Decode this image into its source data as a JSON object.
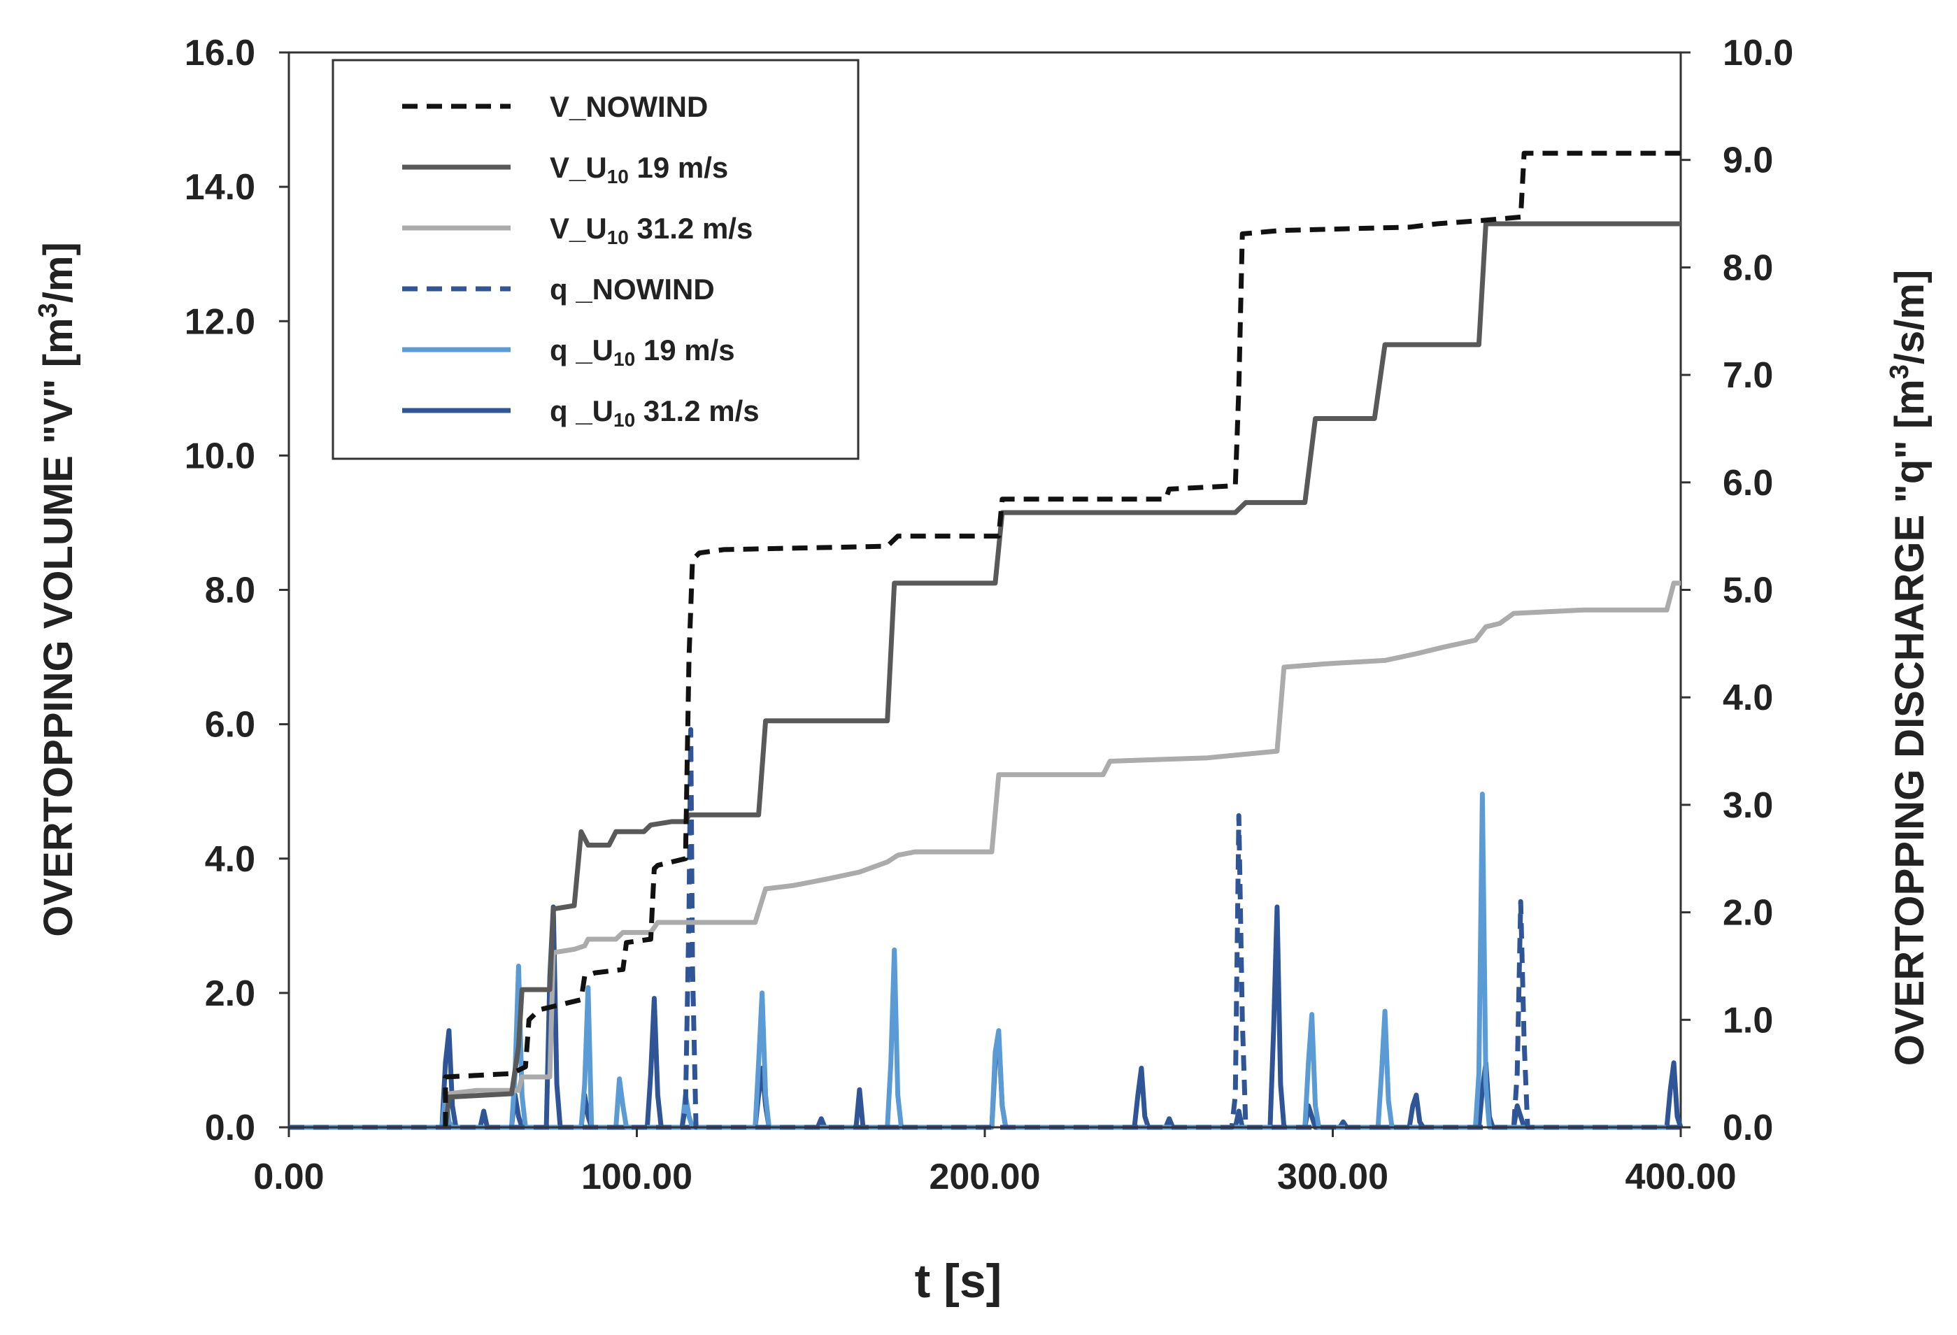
{
  "chart_data": {
    "type": "line",
    "x": {
      "label": "t [s]",
      "range": [
        0,
        400
      ],
      "ticks": [
        0,
        100,
        200,
        300,
        400
      ],
      "tick_labels": [
        "0.00",
        "100.00",
        "200.00",
        "300.00",
        "400.00"
      ]
    },
    "y_left": {
      "label_pre": "OVERTOPPING VOLUME \"V\" [m",
      "label_sup": "3",
      "label_post": "/m]",
      "range": [
        0,
        16
      ],
      "ticks": [
        0,
        2,
        4,
        6,
        8,
        10,
        12,
        14,
        16
      ],
      "tick_labels": [
        "0.0",
        "2.0",
        "4.0",
        "6.0",
        "8.0",
        "10.0",
        "12.0",
        "14.0",
        "16.0"
      ]
    },
    "y_right": {
      "label_pre": "OVERTOPPING DISCHARGE \"q\" [m",
      "label_sup": "3",
      "label_post": "/s/m]",
      "range": [
        0,
        10
      ],
      "ticks": [
        0,
        1,
        2,
        3,
        4,
        5,
        6,
        7,
        8,
        9,
        10
      ],
      "tick_labels": [
        "0.0",
        "1.0",
        "2.0",
        "3.0",
        "4.0",
        "5.0",
        "6.0",
        "7.0",
        "8.0",
        "9.0",
        "10.0"
      ]
    },
    "legend_position": "top-left",
    "series": [
      {
        "name": "V_NOWIND",
        "legend_pre": "V_NOWIND",
        "legend_sub": "",
        "legend_post": "",
        "axis": "left",
        "color": "#111111",
        "dash": "dashed",
        "points": [
          [
            45,
            0
          ],
          [
            45,
            0.75
          ],
          [
            64,
            0.8
          ],
          [
            68,
            0.9
          ],
          [
            69,
            1.6
          ],
          [
            72,
            1.75
          ],
          [
            76,
            1.8
          ],
          [
            84,
            1.9
          ],
          [
            85,
            2.25
          ],
          [
            88,
            2.3
          ],
          [
            96,
            2.35
          ],
          [
            97,
            2.75
          ],
          [
            104,
            2.8
          ],
          [
            105,
            3.85
          ],
          [
            106,
            3.9
          ],
          [
            114,
            4.0
          ],
          [
            115,
            7.0
          ],
          [
            116,
            8.45
          ],
          [
            118,
            8.55
          ],
          [
            125,
            8.6
          ],
          [
            172,
            8.65
          ],
          [
            175,
            8.8
          ],
          [
            190,
            8.8
          ],
          [
            204,
            8.8
          ],
          [
            205,
            9.35
          ],
          [
            230,
            9.35
          ],
          [
            252,
            9.35
          ],
          [
            253,
            9.5
          ],
          [
            272,
            9.55
          ],
          [
            273,
            11.0
          ],
          [
            274,
            13.3
          ],
          [
            285,
            13.35
          ],
          [
            322,
            13.4
          ],
          [
            330,
            13.45
          ],
          [
            343,
            13.5
          ],
          [
            354,
            13.55
          ],
          [
            355,
            14.5
          ],
          [
            400,
            14.5
          ]
        ]
      },
      {
        "name": "V_U10 19 m/s",
        "legend_pre": "V_U",
        "legend_sub": "10",
        "legend_post": " 19 m/s",
        "axis": "left",
        "color": "#595959",
        "dash": "solid",
        "points": [
          [
            45,
            0
          ],
          [
            46,
            0.45
          ],
          [
            64,
            0.5
          ],
          [
            66,
            1.2
          ],
          [
            67,
            2.05
          ],
          [
            75,
            2.05
          ],
          [
            76,
            3.25
          ],
          [
            82,
            3.3
          ],
          [
            84,
            4.4
          ],
          [
            86,
            4.2
          ],
          [
            92,
            4.2
          ],
          [
            94,
            4.4
          ],
          [
            102,
            4.4
          ],
          [
            104,
            4.5
          ],
          [
            110,
            4.55
          ],
          [
            114,
            4.55
          ],
          [
            115,
            4.65
          ],
          [
            135,
            4.65
          ],
          [
            137,
            6.05
          ],
          [
            172,
            6.05
          ],
          [
            174,
            8.1
          ],
          [
            203,
            8.1
          ],
          [
            205,
            9.15
          ],
          [
            272,
            9.15
          ],
          [
            275,
            9.3
          ],
          [
            292,
            9.3
          ],
          [
            295,
            10.55
          ],
          [
            312,
            10.55
          ],
          [
            315,
            11.65
          ],
          [
            342,
            11.65
          ],
          [
            344,
            13.45
          ],
          [
            400,
            13.45
          ]
        ]
      },
      {
        "name": "V_U10 31.2 m/s",
        "legend_pre": "V_U",
        "legend_sub": "10",
        "legend_post": " 31.2 m/s",
        "axis": "left",
        "color": "#ababab",
        "dash": "solid",
        "points": [
          [
            45,
            0
          ],
          [
            46,
            0.5
          ],
          [
            54,
            0.55
          ],
          [
            66,
            0.55
          ],
          [
            67,
            0.75
          ],
          [
            75,
            0.75
          ],
          [
            76,
            2.6
          ],
          [
            82,
            2.65
          ],
          [
            85,
            2.7
          ],
          [
            86,
            2.8
          ],
          [
            94,
            2.8
          ],
          [
            96,
            2.9
          ],
          [
            104,
            2.9
          ],
          [
            106,
            3.05
          ],
          [
            134,
            3.05
          ],
          [
            137,
            3.55
          ],
          [
            145,
            3.6
          ],
          [
            155,
            3.7
          ],
          [
            164,
            3.8
          ],
          [
            172,
            3.95
          ],
          [
            175,
            4.05
          ],
          [
            180,
            4.1
          ],
          [
            202,
            4.1
          ],
          [
            204,
            5.25
          ],
          [
            234,
            5.25
          ],
          [
            236,
            5.45
          ],
          [
            264,
            5.5
          ],
          [
            274,
            5.55
          ],
          [
            284,
            5.6
          ],
          [
            286,
            6.85
          ],
          [
            298,
            6.9
          ],
          [
            315,
            6.95
          ],
          [
            324,
            7.05
          ],
          [
            332,
            7.15
          ],
          [
            341,
            7.25
          ],
          [
            344,
            7.45
          ],
          [
            348,
            7.5
          ],
          [
            352,
            7.65
          ],
          [
            372,
            7.7
          ],
          [
            396,
            7.7
          ],
          [
            398,
            8.1
          ],
          [
            400,
            8.1
          ]
        ]
      },
      {
        "name": "q_NOWIND",
        "legend_pre": "q _NOWIND",
        "legend_sub": "",
        "legend_post": "",
        "axis": "right",
        "color": "#2f5597",
        "dash": "dashed",
        "points": [
          [
            0,
            0
          ],
          [
            113,
            0
          ],
          [
            114,
            0.2
          ],
          [
            115,
            2.0
          ],
          [
            115.5,
            3.7
          ],
          [
            116,
            1.5
          ],
          [
            117,
            0
          ],
          [
            271,
            0
          ],
          [
            272,
            0.3
          ],
          [
            273,
            2.9
          ],
          [
            274,
            1.0
          ],
          [
            275,
            0
          ],
          [
            352,
            0
          ],
          [
            353,
            0.5
          ],
          [
            354,
            2.1
          ],
          [
            355,
            0.8
          ],
          [
            356,
            0
          ],
          [
            400,
            0
          ]
        ]
      },
      {
        "name": "q_U10 19 m/s",
        "legend_pre": "q _U",
        "legend_sub": "10",
        "legend_post": " 19 m/s",
        "axis": "right",
        "color": "#5b9bd5",
        "dash": "solid",
        "points": [
          [
            0,
            0
          ],
          [
            44,
            0
          ],
          [
            45,
            0.3
          ],
          [
            46,
            0.05
          ],
          [
            47,
            0
          ],
          [
            64,
            0
          ],
          [
            65,
            0.5
          ],
          [
            66,
            1.5
          ],
          [
            67,
            0.3
          ],
          [
            68,
            0
          ],
          [
            84,
            0
          ],
          [
            85,
            0.4
          ],
          [
            86,
            1.3
          ],
          [
            87,
            0
          ],
          [
            94,
            0
          ],
          [
            95,
            0.45
          ],
          [
            96,
            0.2
          ],
          [
            97,
            0
          ],
          [
            113,
            0
          ],
          [
            114,
            0.3
          ],
          [
            115,
            0.1
          ],
          [
            116,
            0
          ],
          [
            134,
            0
          ],
          [
            135,
            0.6
          ],
          [
            136,
            1.25
          ],
          [
            137,
            0.3
          ],
          [
            138,
            0
          ],
          [
            172,
            0
          ],
          [
            173,
            0.6
          ],
          [
            174,
            1.65
          ],
          [
            175,
            0.3
          ],
          [
            176,
            0
          ],
          [
            202,
            0
          ],
          [
            203,
            0.7
          ],
          [
            204,
            0.9
          ],
          [
            205,
            0.2
          ],
          [
            206,
            0
          ],
          [
            292,
            0
          ],
          [
            293,
            0.6
          ],
          [
            294,
            1.05
          ],
          [
            295,
            0.2
          ],
          [
            296,
            0
          ],
          [
            313,
            0
          ],
          [
            314,
            0.5
          ],
          [
            315,
            1.08
          ],
          [
            316,
            0.25
          ],
          [
            317,
            0
          ],
          [
            341,
            0
          ],
          [
            342,
            0.5
          ],
          [
            343,
            3.1
          ],
          [
            344,
            0.4
          ],
          [
            345,
            0
          ],
          [
            400,
            0
          ]
        ]
      },
      {
        "name": "q_U10 31.2 m/s",
        "legend_pre": "q _U",
        "legend_sub": "10",
        "legend_post": " 31.2 m/s",
        "axis": "right",
        "color": "#2f5597",
        "dash": "solid",
        "points": [
          [
            0,
            0
          ],
          [
            44,
            0
          ],
          [
            45,
            0.6
          ],
          [
            46,
            0.9
          ],
          [
            47,
            0.2
          ],
          [
            48,
            0
          ],
          [
            55,
            0
          ],
          [
            56,
            0.15
          ],
          [
            57,
            0
          ],
          [
            64,
            0
          ],
          [
            65,
            0.3
          ],
          [
            66,
            0.1
          ],
          [
            67,
            0
          ],
          [
            74,
            0
          ],
          [
            75,
            1.4
          ],
          [
            76,
            2.05
          ],
          [
            77,
            0.4
          ],
          [
            78,
            0
          ],
          [
            84,
            0
          ],
          [
            85,
            0.3
          ],
          [
            86,
            0.1
          ],
          [
            87,
            0
          ],
          [
            103,
            0
          ],
          [
            104,
            0.5
          ],
          [
            105,
            1.2
          ],
          [
            106,
            0.3
          ],
          [
            107,
            0
          ],
          [
            134,
            0
          ],
          [
            135,
            0.3
          ],
          [
            136,
            0.55
          ],
          [
            137,
            0.2
          ],
          [
            138,
            0
          ],
          [
            152,
            0
          ],
          [
            153,
            0.08
          ],
          [
            154,
            0
          ],
          [
            163,
            0
          ],
          [
            164,
            0.35
          ],
          [
            165,
            0
          ],
          [
            202,
            0
          ],
          [
            203,
            0.6
          ],
          [
            204,
            0.85
          ],
          [
            205,
            0.2
          ],
          [
            206,
            0
          ],
          [
            243,
            0
          ],
          [
            244,
            0.3
          ],
          [
            245,
            0.55
          ],
          [
            246,
            0.1
          ],
          [
            247,
            0
          ],
          [
            252,
            0
          ],
          [
            253,
            0.08
          ],
          [
            254,
            0
          ],
          [
            272,
            0
          ],
          [
            273,
            0.15
          ],
          [
            274,
            0
          ],
          [
            282,
            0
          ],
          [
            283,
            0.9
          ],
          [
            284,
            2.05
          ],
          [
            285,
            0.4
          ],
          [
            286,
            0
          ],
          [
            292,
            0
          ],
          [
            293,
            0.2
          ],
          [
            294,
            0.1
          ],
          [
            295,
            0
          ],
          [
            302,
            0
          ],
          [
            303,
            0.05
          ],
          [
            304,
            0
          ],
          [
            322,
            0
          ],
          [
            323,
            0.2
          ],
          [
            324,
            0.3
          ],
          [
            325,
            0.05
          ],
          [
            326,
            0
          ],
          [
            342,
            0
          ],
          [
            343,
            0.35
          ],
          [
            344,
            0.6
          ],
          [
            345,
            0.1
          ],
          [
            346,
            0
          ],
          [
            352,
            0
          ],
          [
            353,
            0.2
          ],
          [
            354,
            0.1
          ],
          [
            355,
            0
          ],
          [
            396,
            0
          ],
          [
            397,
            0.35
          ],
          [
            398,
            0.6
          ],
          [
            399,
            0.1
          ],
          [
            400,
            0
          ]
        ]
      }
    ]
  }
}
